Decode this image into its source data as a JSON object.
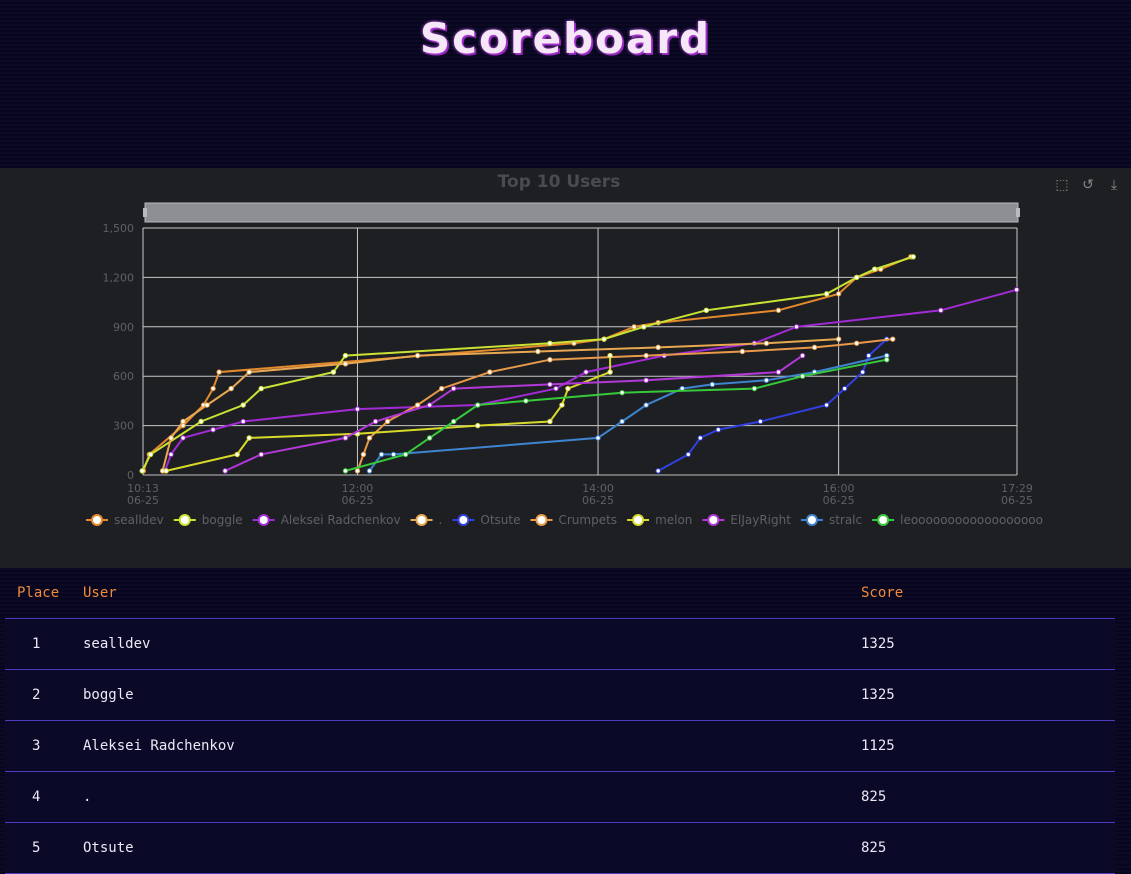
{
  "page": {
    "title": "Scoreboard"
  },
  "toolbox": {
    "zoom_icon": "zoom-icon",
    "restore_icon": "restore-icon",
    "download_icon": "download-icon"
  },
  "table": {
    "headers": {
      "place": "Place",
      "user": "User",
      "score": "Score"
    },
    "rows": [
      {
        "place": "1",
        "user": "sealldev",
        "score": "1325"
      },
      {
        "place": "2",
        "user": "boggle",
        "score": "1325"
      },
      {
        "place": "3",
        "user": "Aleksei Radchenkov",
        "score": "1125"
      },
      {
        "place": "4",
        "user": ".",
        "score": "825"
      },
      {
        "place": "5",
        "user": "Otsute",
        "score": "825"
      }
    ]
  },
  "chart_data": {
    "type": "line",
    "title": "Top 10 Users",
    "xlabel": "",
    "ylabel": "",
    "x_ticks": [
      {
        "time": "10:13",
        "date": "06-25",
        "h": 10.217
      },
      {
        "time": "12:00",
        "date": "06-25",
        "h": 12.0
      },
      {
        "time": "14:00",
        "date": "06-25",
        "h": 14.0
      },
      {
        "time": "16:00",
        "date": "06-25",
        "h": 16.0
      },
      {
        "time": "17:29",
        "date": "06-25",
        "h": 17.483
      }
    ],
    "xlim_hours": [
      10.217,
      17.483
    ],
    "ylim": [
      0,
      1500
    ],
    "y_ticks": [
      "0",
      "300",
      "600",
      "900",
      "1,200",
      "1,500"
    ],
    "grid": true,
    "legend_position": "bottom",
    "series": [
      {
        "name": "sealldev",
        "color": "#e48a2c",
        "points": [
          [
            10.22,
            25
          ],
          [
            10.27,
            125
          ],
          [
            10.55,
            300
          ],
          [
            10.72,
            425
          ],
          [
            10.8,
            525
          ],
          [
            10.85,
            625
          ],
          [
            13.8,
            800
          ],
          [
            14.05,
            825
          ],
          [
            14.3,
            900
          ],
          [
            14.5,
            925
          ],
          [
            15.5,
            1000
          ],
          [
            16.0,
            1100
          ],
          [
            16.15,
            1200
          ],
          [
            16.35,
            1250
          ],
          [
            16.6,
            1325
          ]
        ]
      },
      {
        "name": "boggle",
        "color": "#c9e234",
        "points": [
          [
            10.21,
            25
          ],
          [
            10.28,
            125
          ],
          [
            10.7,
            325
          ],
          [
            11.05,
            425
          ],
          [
            11.2,
            525
          ],
          [
            11.8,
            625
          ],
          [
            11.9,
            725
          ],
          [
            13.6,
            800
          ],
          [
            14.05,
            825
          ],
          [
            14.38,
            900
          ],
          [
            14.9,
            1000
          ],
          [
            15.9,
            1100
          ],
          [
            16.15,
            1200
          ],
          [
            16.3,
            1250
          ],
          [
            16.62,
            1325
          ]
        ]
      },
      {
        "name": "Aleksei Radchenkov",
        "color": "#a22bd6",
        "points": [
          [
            10.4,
            25
          ],
          [
            10.45,
            125
          ],
          [
            10.55,
            225
          ],
          [
            10.8,
            275
          ],
          [
            11.05,
            325
          ],
          [
            12.0,
            400
          ],
          [
            13.0,
            425
          ],
          [
            13.65,
            525
          ],
          [
            13.9,
            625
          ],
          [
            14.55,
            725
          ],
          [
            15.3,
            800
          ],
          [
            15.65,
            900
          ],
          [
            16.85,
            1000
          ],
          [
            17.48,
            1125
          ]
        ]
      },
      {
        "name": ".",
        "color": "#e8a852",
        "points": [
          [
            10.38,
            25
          ],
          [
            10.45,
            225
          ],
          [
            10.55,
            325
          ],
          [
            10.75,
            425
          ],
          [
            10.95,
            525
          ],
          [
            11.1,
            625
          ],
          [
            11.9,
            675
          ],
          [
            12.5,
            725
          ],
          [
            13.5,
            750
          ],
          [
            14.5,
            775
          ],
          [
            15.4,
            800
          ],
          [
            16.0,
            825
          ]
        ]
      },
      {
        "name": "Otsute",
        "color": "#3140e0",
        "points": [
          [
            14.5,
            25
          ],
          [
            14.75,
            125
          ],
          [
            14.85,
            225
          ],
          [
            15.0,
            275
          ],
          [
            15.35,
            325
          ],
          [
            15.9,
            425
          ],
          [
            16.05,
            525
          ],
          [
            16.2,
            625
          ],
          [
            16.25,
            725
          ],
          [
            16.4,
            825
          ]
        ]
      },
      {
        "name": "Crumpets",
        "color": "#e89a4a",
        "points": [
          [
            12.0,
            25
          ],
          [
            12.05,
            125
          ],
          [
            12.1,
            225
          ],
          [
            12.25,
            325
          ],
          [
            12.5,
            425
          ],
          [
            12.7,
            525
          ],
          [
            13.1,
            625
          ],
          [
            13.6,
            700
          ],
          [
            14.4,
            725
          ],
          [
            15.2,
            750
          ],
          [
            15.8,
            775
          ],
          [
            16.15,
            800
          ],
          [
            16.45,
            825
          ]
        ]
      },
      {
        "name": "melon",
        "color": "#d9d92a",
        "points": [
          [
            10.41,
            25
          ],
          [
            11.0,
            125
          ],
          [
            11.1,
            225
          ],
          [
            12.0,
            250
          ],
          [
            13.0,
            300
          ],
          [
            13.6,
            325
          ],
          [
            13.7,
            425
          ],
          [
            13.75,
            525
          ],
          [
            14.1,
            625
          ],
          [
            14.1,
            725
          ]
        ]
      },
      {
        "name": "ElJayRight",
        "color": "#b238d8",
        "points": [
          [
            10.9,
            25
          ],
          [
            11.2,
            125
          ],
          [
            11.9,
            225
          ],
          [
            12.15,
            325
          ],
          [
            12.6,
            425
          ],
          [
            12.8,
            525
          ],
          [
            13.6,
            550
          ],
          [
            14.4,
            575
          ],
          [
            15.5,
            625
          ],
          [
            15.7,
            725
          ]
        ]
      },
      {
        "name": "stralc",
        "color": "#3e84d0",
        "points": [
          [
            12.1,
            25
          ],
          [
            12.2,
            125
          ],
          [
            12.3,
            125
          ],
          [
            14.0,
            225
          ],
          [
            14.2,
            325
          ],
          [
            14.4,
            425
          ],
          [
            14.7,
            525
          ],
          [
            14.95,
            550
          ],
          [
            15.4,
            575
          ],
          [
            15.8,
            625
          ],
          [
            16.4,
            725
          ]
        ]
      },
      {
        "name": "leoooooooooooooooooo",
        "color": "#36c93a",
        "points": [
          [
            11.9,
            25
          ],
          [
            12.4,
            125
          ],
          [
            12.6,
            225
          ],
          [
            12.8,
            325
          ],
          [
            13.0,
            425
          ],
          [
            13.4,
            450
          ],
          [
            14.2,
            500
          ],
          [
            15.3,
            525
          ],
          [
            15.7,
            600
          ],
          [
            16.4,
            700
          ]
        ]
      }
    ]
  }
}
